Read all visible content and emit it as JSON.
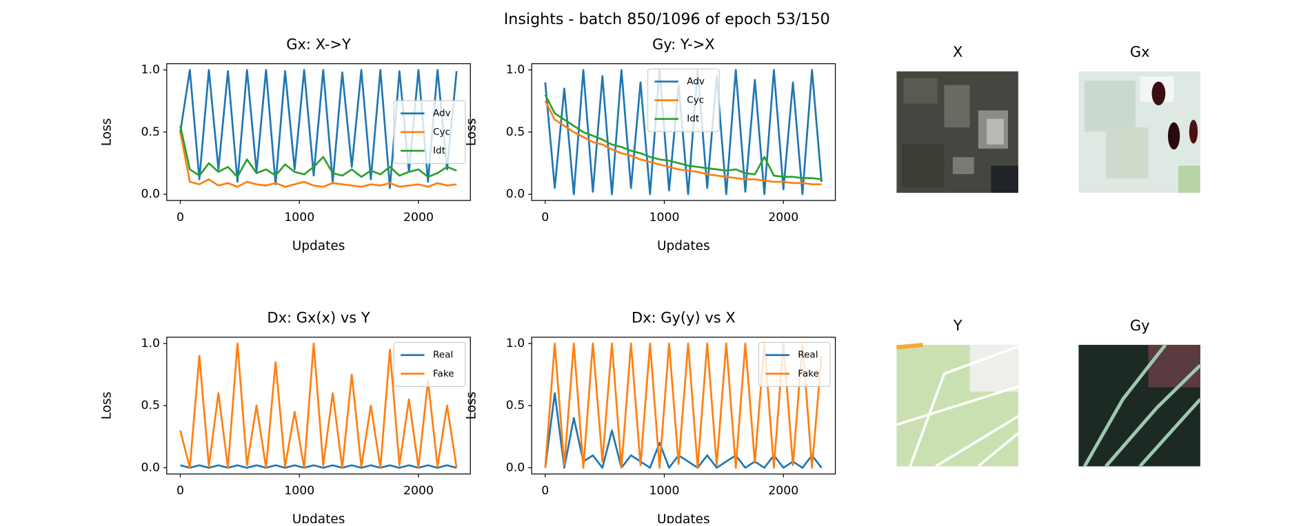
{
  "title": "Insights - batch 850/1096 of epoch 53/150",
  "chart_data": [
    {
      "type": "line",
      "title": "Gx: X->Y",
      "x_label": "Updates",
      "y_label": "Loss",
      "legend": "center right",
      "x": [
        0,
        80,
        160,
        240,
        320,
        400,
        480,
        560,
        640,
        720,
        800,
        880,
        960,
        1040,
        1120,
        1200,
        1280,
        1360,
        1440,
        1520,
        1600,
        1680,
        1760,
        1840,
        1920,
        2000,
        2080,
        2160,
        2240,
        2320
      ],
      "xlim": [
        -114,
        2436
      ],
      "ylim": [
        -0.05,
        1.05
      ],
      "xticks": [
        0,
        1000,
        2000
      ],
      "yticks": [
        {
          "value": 0,
          "label": "0.0"
        },
        {
          "value": 0.5,
          "label": "0.5"
        },
        {
          "value": 1,
          "label": "1.0"
        }
      ],
      "series": [
        {
          "name": "Adv",
          "color": "#1f77b4",
          "values": [
            0.5,
            1.0,
            0.12,
            1.0,
            0.2,
            0.99,
            0.1,
            1.0,
            0.18,
            1.0,
            0.08,
            0.99,
            0.2,
            1.0,
            0.15,
            1.0,
            0.1,
            0.98,
            0.22,
            1.0,
            0.12,
            1.0,
            0.05,
            0.99,
            0.18,
            1.0,
            0.1,
            1.0,
            0.2,
            0.99
          ]
        },
        {
          "name": "Cyc",
          "color": "#ff7f0e",
          "values": [
            0.5,
            0.1,
            0.08,
            0.12,
            0.07,
            0.09,
            0.06,
            0.1,
            0.08,
            0.07,
            0.09,
            0.06,
            0.08,
            0.1,
            0.07,
            0.06,
            0.09,
            0.08,
            0.07,
            0.06,
            0.08,
            0.07,
            0.09,
            0.06,
            0.07,
            0.08,
            0.06,
            0.09,
            0.07,
            0.08
          ]
        },
        {
          "name": "Idt",
          "color": "#2ca02c",
          "values": [
            0.55,
            0.2,
            0.15,
            0.25,
            0.18,
            0.22,
            0.14,
            0.28,
            0.17,
            0.2,
            0.15,
            0.24,
            0.18,
            0.16,
            0.22,
            0.3,
            0.17,
            0.15,
            0.2,
            0.14,
            0.19,
            0.16,
            0.22,
            0.15,
            0.18,
            0.2,
            0.14,
            0.17,
            0.22,
            0.19
          ]
        }
      ]
    },
    {
      "type": "line",
      "title": "Gy: Y->X",
      "x_label": "Updates",
      "y_label": "Loss",
      "legend": "upper center",
      "x": [
        0,
        80,
        160,
        240,
        320,
        400,
        480,
        560,
        640,
        720,
        800,
        880,
        960,
        1040,
        1120,
        1200,
        1280,
        1360,
        1440,
        1520,
        1600,
        1680,
        1760,
        1840,
        1920,
        2000,
        2080,
        2160,
        2240,
        2320
      ],
      "xlim": [
        -114,
        2436
      ],
      "ylim": [
        -0.05,
        1.05
      ],
      "xticks": [
        0,
        1000,
        2000
      ],
      "yticks": [
        {
          "value": 0,
          "label": "0.0"
        },
        {
          "value": 0.5,
          "label": "0.5"
        },
        {
          "value": 1,
          "label": "1.0"
        }
      ],
      "series": [
        {
          "name": "Adv",
          "color": "#1f77b4",
          "values": [
            0.9,
            0.05,
            0.85,
            0.0,
            1.0,
            0.02,
            0.95,
            0.0,
            1.0,
            0.05,
            0.9,
            0.0,
            1.0,
            0.03,
            0.88,
            0.0,
            1.0,
            0.05,
            0.95,
            0.0,
            1.0,
            0.02,
            0.92,
            0.0,
            1.0,
            0.04,
            0.9,
            0.0,
            1.0,
            0.1
          ]
        },
        {
          "name": "Cyc",
          "color": "#ff7f0e",
          "values": [
            0.75,
            0.6,
            0.55,
            0.5,
            0.46,
            0.42,
            0.4,
            0.36,
            0.33,
            0.31,
            0.28,
            0.26,
            0.24,
            0.22,
            0.2,
            0.19,
            0.18,
            0.16,
            0.15,
            0.14,
            0.13,
            0.12,
            0.12,
            0.11,
            0.1,
            0.1,
            0.09,
            0.09,
            0.08,
            0.08
          ]
        },
        {
          "name": "Idt",
          "color": "#2ca02c",
          "values": [
            0.8,
            0.65,
            0.6,
            0.55,
            0.5,
            0.47,
            0.44,
            0.4,
            0.38,
            0.35,
            0.33,
            0.3,
            0.28,
            0.27,
            0.25,
            0.23,
            0.22,
            0.21,
            0.2,
            0.19,
            0.2,
            0.17,
            0.16,
            0.3,
            0.15,
            0.14,
            0.14,
            0.13,
            0.13,
            0.12
          ]
        }
      ]
    },
    {
      "type": "line",
      "title": "Dx: Gx(x) vs Y",
      "x_label": "Updates",
      "y_label": "Loss",
      "legend": "upper right",
      "x": [
        0,
        80,
        160,
        240,
        320,
        400,
        480,
        560,
        640,
        720,
        800,
        880,
        960,
        1040,
        1120,
        1200,
        1280,
        1360,
        1440,
        1520,
        1600,
        1680,
        1760,
        1840,
        1920,
        2000,
        2080,
        2160,
        2240,
        2320
      ],
      "xlim": [
        -114,
        2436
      ],
      "ylim": [
        -0.05,
        1.05
      ],
      "xticks": [
        0,
        1000,
        2000
      ],
      "yticks": [
        {
          "value": 0,
          "label": "0.0"
        },
        {
          "value": 0.5,
          "label": "0.5"
        },
        {
          "value": 1,
          "label": "1.0"
        }
      ],
      "series": [
        {
          "name": "Real",
          "color": "#1f77b4",
          "values": [
            0.02,
            0.0,
            0.02,
            0.0,
            0.02,
            0.0,
            0.02,
            0.0,
            0.02,
            0.0,
            0.02,
            0.0,
            0.02,
            0.0,
            0.02,
            0.0,
            0.02,
            0.0,
            0.02,
            0.0,
            0.02,
            0.0,
            0.02,
            0.0,
            0.02,
            0.0,
            0.02,
            0.0,
            0.02,
            0.0
          ]
        },
        {
          "name": "Fake",
          "color": "#ff7f0e",
          "values": [
            0.3,
            0.0,
            0.9,
            0.01,
            0.6,
            0.0,
            1.0,
            0.02,
            0.5,
            0.0,
            0.85,
            0.01,
            0.45,
            0.0,
            1.0,
            0.02,
            0.6,
            0.0,
            0.75,
            0.01,
            0.5,
            0.0,
            0.95,
            0.02,
            0.55,
            0.0,
            0.7,
            0.01,
            0.5,
            0.0
          ]
        }
      ]
    },
    {
      "type": "line",
      "title": "Dx: Gy(y) vs X",
      "x_label": "Updates",
      "y_label": "Loss",
      "legend": "upper right",
      "x": [
        0,
        80,
        160,
        240,
        320,
        400,
        480,
        560,
        640,
        720,
        800,
        880,
        960,
        1040,
        1120,
        1200,
        1280,
        1360,
        1440,
        1520,
        1600,
        1680,
        1760,
        1840,
        1920,
        2000,
        2080,
        2160,
        2240,
        2320
      ],
      "xlim": [
        -114,
        2436
      ],
      "ylim": [
        -0.05,
        1.05
      ],
      "xticks": [
        0,
        1000,
        2000
      ],
      "yticks": [
        {
          "value": 0,
          "label": "0.0"
        },
        {
          "value": 0.5,
          "label": "0.5"
        },
        {
          "value": 1,
          "label": "1.0"
        }
      ],
      "series": [
        {
          "name": "Real",
          "color": "#1f77b4",
          "values": [
            0.0,
            0.6,
            0.0,
            0.4,
            0.05,
            0.1,
            0.0,
            0.3,
            0.0,
            0.1,
            0.05,
            0.0,
            0.2,
            0.0,
            0.1,
            0.05,
            0.0,
            0.1,
            0.0,
            0.05,
            0.1,
            0.0,
            0.05,
            0.0,
            0.1,
            0.0,
            0.05,
            0.0,
            0.1,
            0.0
          ]
        },
        {
          "name": "Fake",
          "color": "#ff7f0e",
          "values": [
            0.0,
            1.0,
            0.02,
            1.0,
            0.0,
            1.0,
            0.05,
            1.0,
            0.0,
            1.0,
            0.02,
            1.0,
            0.0,
            1.0,
            0.03,
            1.0,
            0.0,
            1.0,
            0.02,
            1.0,
            0.0,
            1.0,
            0.04,
            1.0,
            0.0,
            1.0,
            0.02,
            1.0,
            0.0,
            0.9
          ]
        }
      ]
    }
  ],
  "images": [
    {
      "title": "X"
    },
    {
      "title": "Gx"
    },
    {
      "title": "Y"
    },
    {
      "title": "Gy"
    }
  ]
}
